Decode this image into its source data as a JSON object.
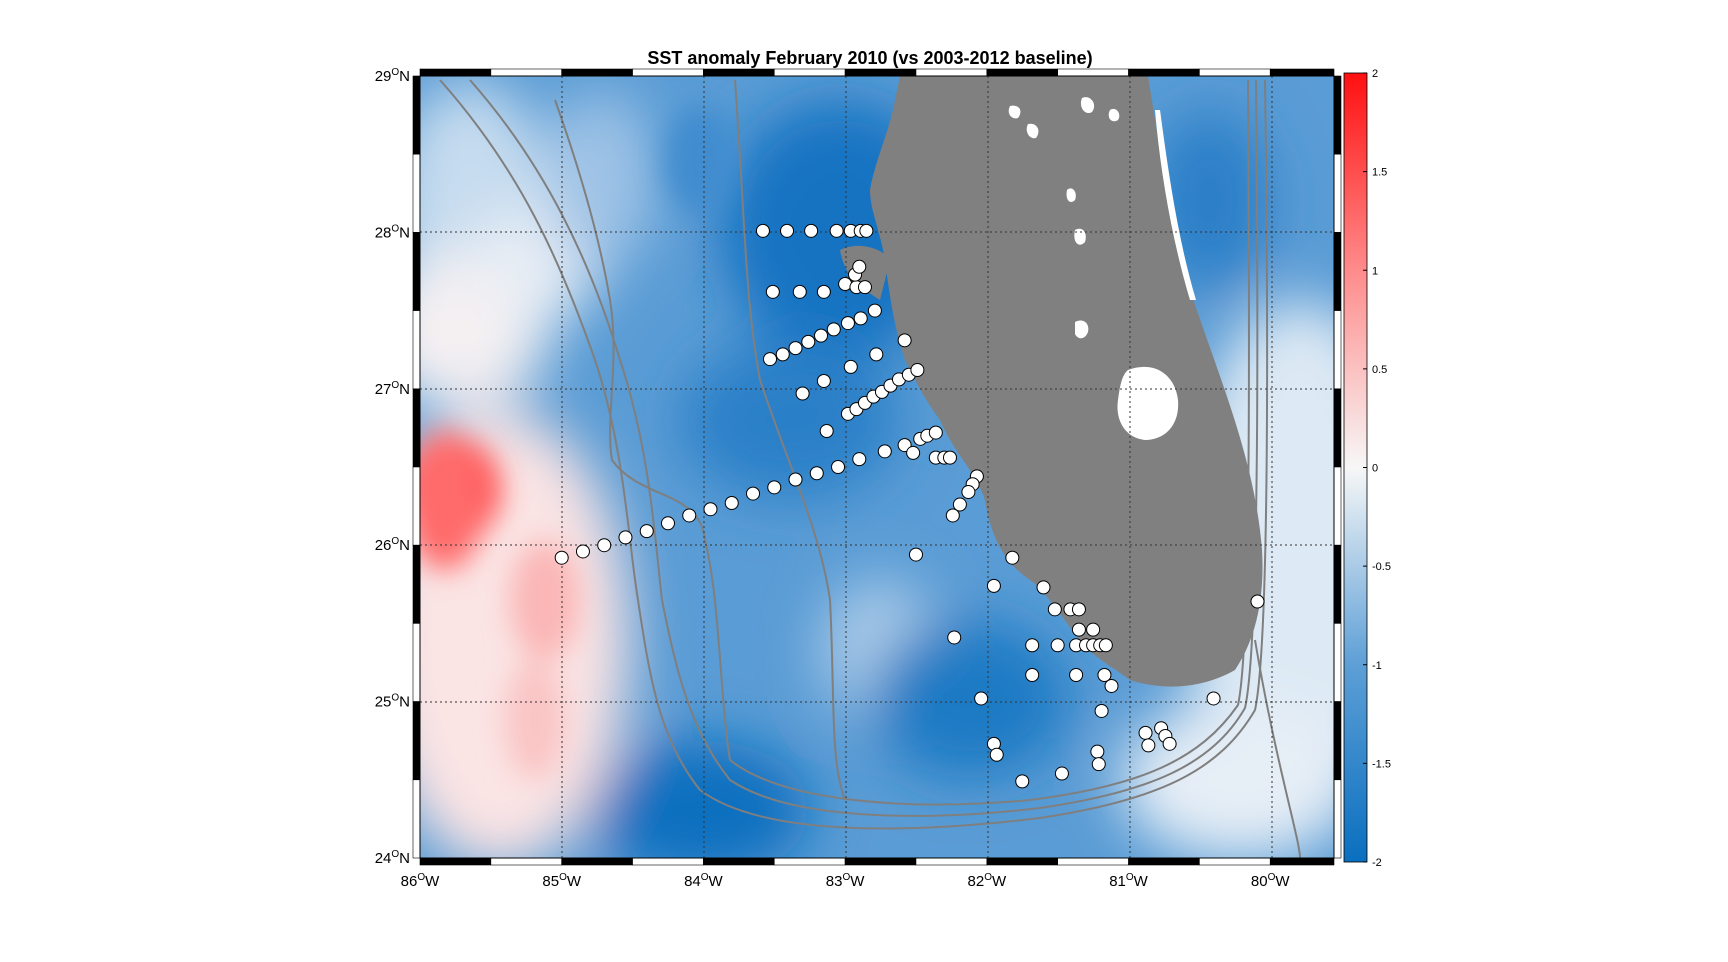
{
  "title": "SST anomaly February 2010 (vs 2003-2012 baseline)",
  "map": {
    "lon_range": [
      -86,
      -79.55
    ],
    "lat_range": [
      24,
      29
    ],
    "lon_ticks": [
      {
        "value": -86,
        "num": "86",
        "deg": "O",
        "hem": "W"
      },
      {
        "value": -85,
        "num": "85",
        "deg": "O",
        "hem": "W"
      },
      {
        "value": -84,
        "num": "84",
        "deg": "O",
        "hem": "W"
      },
      {
        "value": -83,
        "num": "83",
        "deg": "O",
        "hem": "W"
      },
      {
        "value": -82,
        "num": "82",
        "deg": "O",
        "hem": "W"
      },
      {
        "value": -81,
        "num": "81",
        "deg": "O",
        "hem": "W"
      },
      {
        "value": -80,
        "num": "80",
        "deg": "O",
        "hem": "W"
      }
    ],
    "lat_ticks": [
      {
        "value": 24,
        "num": "24",
        "deg": "O",
        "hem": "N"
      },
      {
        "value": 25,
        "num": "25",
        "deg": "O",
        "hem": "N"
      },
      {
        "value": 26,
        "num": "26",
        "deg": "O",
        "hem": "N"
      },
      {
        "value": 27,
        "num": "27",
        "deg": "O",
        "hem": "N"
      },
      {
        "value": 28,
        "num": "28",
        "deg": "O",
        "hem": "N"
      },
      {
        "value": 29,
        "num": "29",
        "deg": "O",
        "hem": "N"
      }
    ],
    "grid": true,
    "colors": {
      "land": "#808080",
      "coast_contour": "#7f7f7f",
      "anomaly_strong_negative": "#0a6fbf",
      "anomaly_neutral": "#f7f7f7",
      "anomaly_positive": "#ff2020",
      "station_fill": "#ffffff",
      "station_edge": "#000000"
    }
  },
  "colorbar": {
    "range": [
      -2,
      2
    ],
    "ticks": [
      "2",
      "1.5",
      "1",
      "0.5",
      "0",
      "-0.5",
      "-1",
      "-1.5",
      "-2"
    ],
    "colormap": "blue-white-red"
  },
  "stations": [
    {
      "lon": -85.0,
      "lat": 25.92
    },
    {
      "lon": -84.85,
      "lat": 25.96
    },
    {
      "lon": -84.7,
      "lat": 26.0
    },
    {
      "lon": -84.55,
      "lat": 26.05
    },
    {
      "lon": -84.4,
      "lat": 26.09
    },
    {
      "lon": -84.25,
      "lat": 26.14
    },
    {
      "lon": -84.1,
      "lat": 26.19
    },
    {
      "lon": -83.95,
      "lat": 26.23
    },
    {
      "lon": -83.8,
      "lat": 26.27
    },
    {
      "lon": -83.65,
      "lat": 26.33
    },
    {
      "lon": -83.5,
      "lat": 26.37
    },
    {
      "lon": -83.35,
      "lat": 26.42
    },
    {
      "lon": -83.2,
      "lat": 26.46
    },
    {
      "lon": -83.05,
      "lat": 26.5
    },
    {
      "lon": -82.9,
      "lat": 26.55
    },
    {
      "lon": -82.72,
      "lat": 26.6
    },
    {
      "lon": -82.58,
      "lat": 26.64
    },
    {
      "lon": -82.47,
      "lat": 26.68
    },
    {
      "lon": -82.42,
      "lat": 26.7
    },
    {
      "lon": -82.36,
      "lat": 26.72
    },
    {
      "lon": -82.52,
      "lat": 26.59
    },
    {
      "lon": -82.36,
      "lat": 26.56
    },
    {
      "lon": -82.3,
      "lat": 26.56
    },
    {
      "lon": -82.26,
      "lat": 26.56
    },
    {
      "lon": -82.07,
      "lat": 26.44
    },
    {
      "lon": -82.1,
      "lat": 26.39
    },
    {
      "lon": -82.13,
      "lat": 26.34
    },
    {
      "lon": -82.19,
      "lat": 26.26
    },
    {
      "lon": -82.24,
      "lat": 26.19
    },
    {
      "lon": -83.13,
      "lat": 26.73
    },
    {
      "lon": -82.98,
      "lat": 26.84
    },
    {
      "lon": -82.92,
      "lat": 26.87
    },
    {
      "lon": -82.86,
      "lat": 26.91
    },
    {
      "lon": -82.8,
      "lat": 26.95
    },
    {
      "lon": -82.74,
      "lat": 26.98
    },
    {
      "lon": -82.68,
      "lat": 27.02
    },
    {
      "lon": -82.62,
      "lat": 27.06
    },
    {
      "lon": -82.55,
      "lat": 27.09
    },
    {
      "lon": -82.49,
      "lat": 27.12
    },
    {
      "lon": -83.3,
      "lat": 26.97
    },
    {
      "lon": -83.15,
      "lat": 27.05
    },
    {
      "lon": -82.96,
      "lat": 27.14
    },
    {
      "lon": -82.78,
      "lat": 27.22
    },
    {
      "lon": -82.58,
      "lat": 27.31
    },
    {
      "lon": -83.53,
      "lat": 27.19
    },
    {
      "lon": -83.44,
      "lat": 27.22
    },
    {
      "lon": -83.35,
      "lat": 27.26
    },
    {
      "lon": -83.26,
      "lat": 27.3
    },
    {
      "lon": -83.17,
      "lat": 27.34
    },
    {
      "lon": -83.08,
      "lat": 27.38
    },
    {
      "lon": -82.98,
      "lat": 27.42
    },
    {
      "lon": -82.89,
      "lat": 27.45
    },
    {
      "lon": -82.79,
      "lat": 27.5
    },
    {
      "lon": -83.51,
      "lat": 27.62
    },
    {
      "lon": -83.32,
      "lat": 27.62
    },
    {
      "lon": -83.15,
      "lat": 27.62
    },
    {
      "lon": -83.0,
      "lat": 27.67
    },
    {
      "lon": -82.92,
      "lat": 27.65
    },
    {
      "lon": -82.86,
      "lat": 27.65
    },
    {
      "lon": -82.93,
      "lat": 27.73
    },
    {
      "lon": -82.9,
      "lat": 27.78
    },
    {
      "lon": -83.58,
      "lat": 28.01
    },
    {
      "lon": -83.41,
      "lat": 28.01
    },
    {
      "lon": -83.24,
      "lat": 28.01
    },
    {
      "lon": -83.06,
      "lat": 28.01
    },
    {
      "lon": -82.96,
      "lat": 28.01
    },
    {
      "lon": -82.89,
      "lat": 28.01
    },
    {
      "lon": -82.85,
      "lat": 28.01
    },
    {
      "lon": -82.5,
      "lat": 25.94
    },
    {
      "lon": -82.23,
      "lat": 25.41
    },
    {
      "lon": -81.95,
      "lat": 25.74
    },
    {
      "lon": -81.82,
      "lat": 25.92
    },
    {
      "lon": -81.6,
      "lat": 25.73
    },
    {
      "lon": -81.52,
      "lat": 25.59
    },
    {
      "lon": -81.41,
      "lat": 25.59
    },
    {
      "lon": -81.35,
      "lat": 25.59
    },
    {
      "lon": -81.35,
      "lat": 25.46
    },
    {
      "lon": -81.25,
      "lat": 25.46
    },
    {
      "lon": -81.68,
      "lat": 25.36
    },
    {
      "lon": -81.5,
      "lat": 25.36
    },
    {
      "lon": -81.37,
      "lat": 25.36
    },
    {
      "lon": -81.3,
      "lat": 25.36
    },
    {
      "lon": -81.25,
      "lat": 25.36
    },
    {
      "lon": -81.2,
      "lat": 25.36
    },
    {
      "lon": -81.16,
      "lat": 25.36
    },
    {
      "lon": -81.68,
      "lat": 25.17
    },
    {
      "lon": -81.37,
      "lat": 25.17
    },
    {
      "lon": -81.17,
      "lat": 25.17
    },
    {
      "lon": -81.12,
      "lat": 25.1
    },
    {
      "lon": -82.04,
      "lat": 25.02
    },
    {
      "lon": -81.19,
      "lat": 24.94
    },
    {
      "lon": -81.95,
      "lat": 24.73
    },
    {
      "lon": -81.93,
      "lat": 24.66
    },
    {
      "lon": -81.75,
      "lat": 24.49
    },
    {
      "lon": -81.47,
      "lat": 24.54
    },
    {
      "lon": -81.22,
      "lat": 24.68
    },
    {
      "lon": -81.21,
      "lat": 24.6
    },
    {
      "lon": -80.88,
      "lat": 24.8
    },
    {
      "lon": -80.86,
      "lat": 24.72
    },
    {
      "lon": -80.77,
      "lat": 24.83
    },
    {
      "lon": -80.74,
      "lat": 24.78
    },
    {
      "lon": -80.71,
      "lat": 24.73
    },
    {
      "lon": -80.4,
      "lat": 25.02
    },
    {
      "lon": -80.09,
      "lat": 25.64
    }
  ]
}
